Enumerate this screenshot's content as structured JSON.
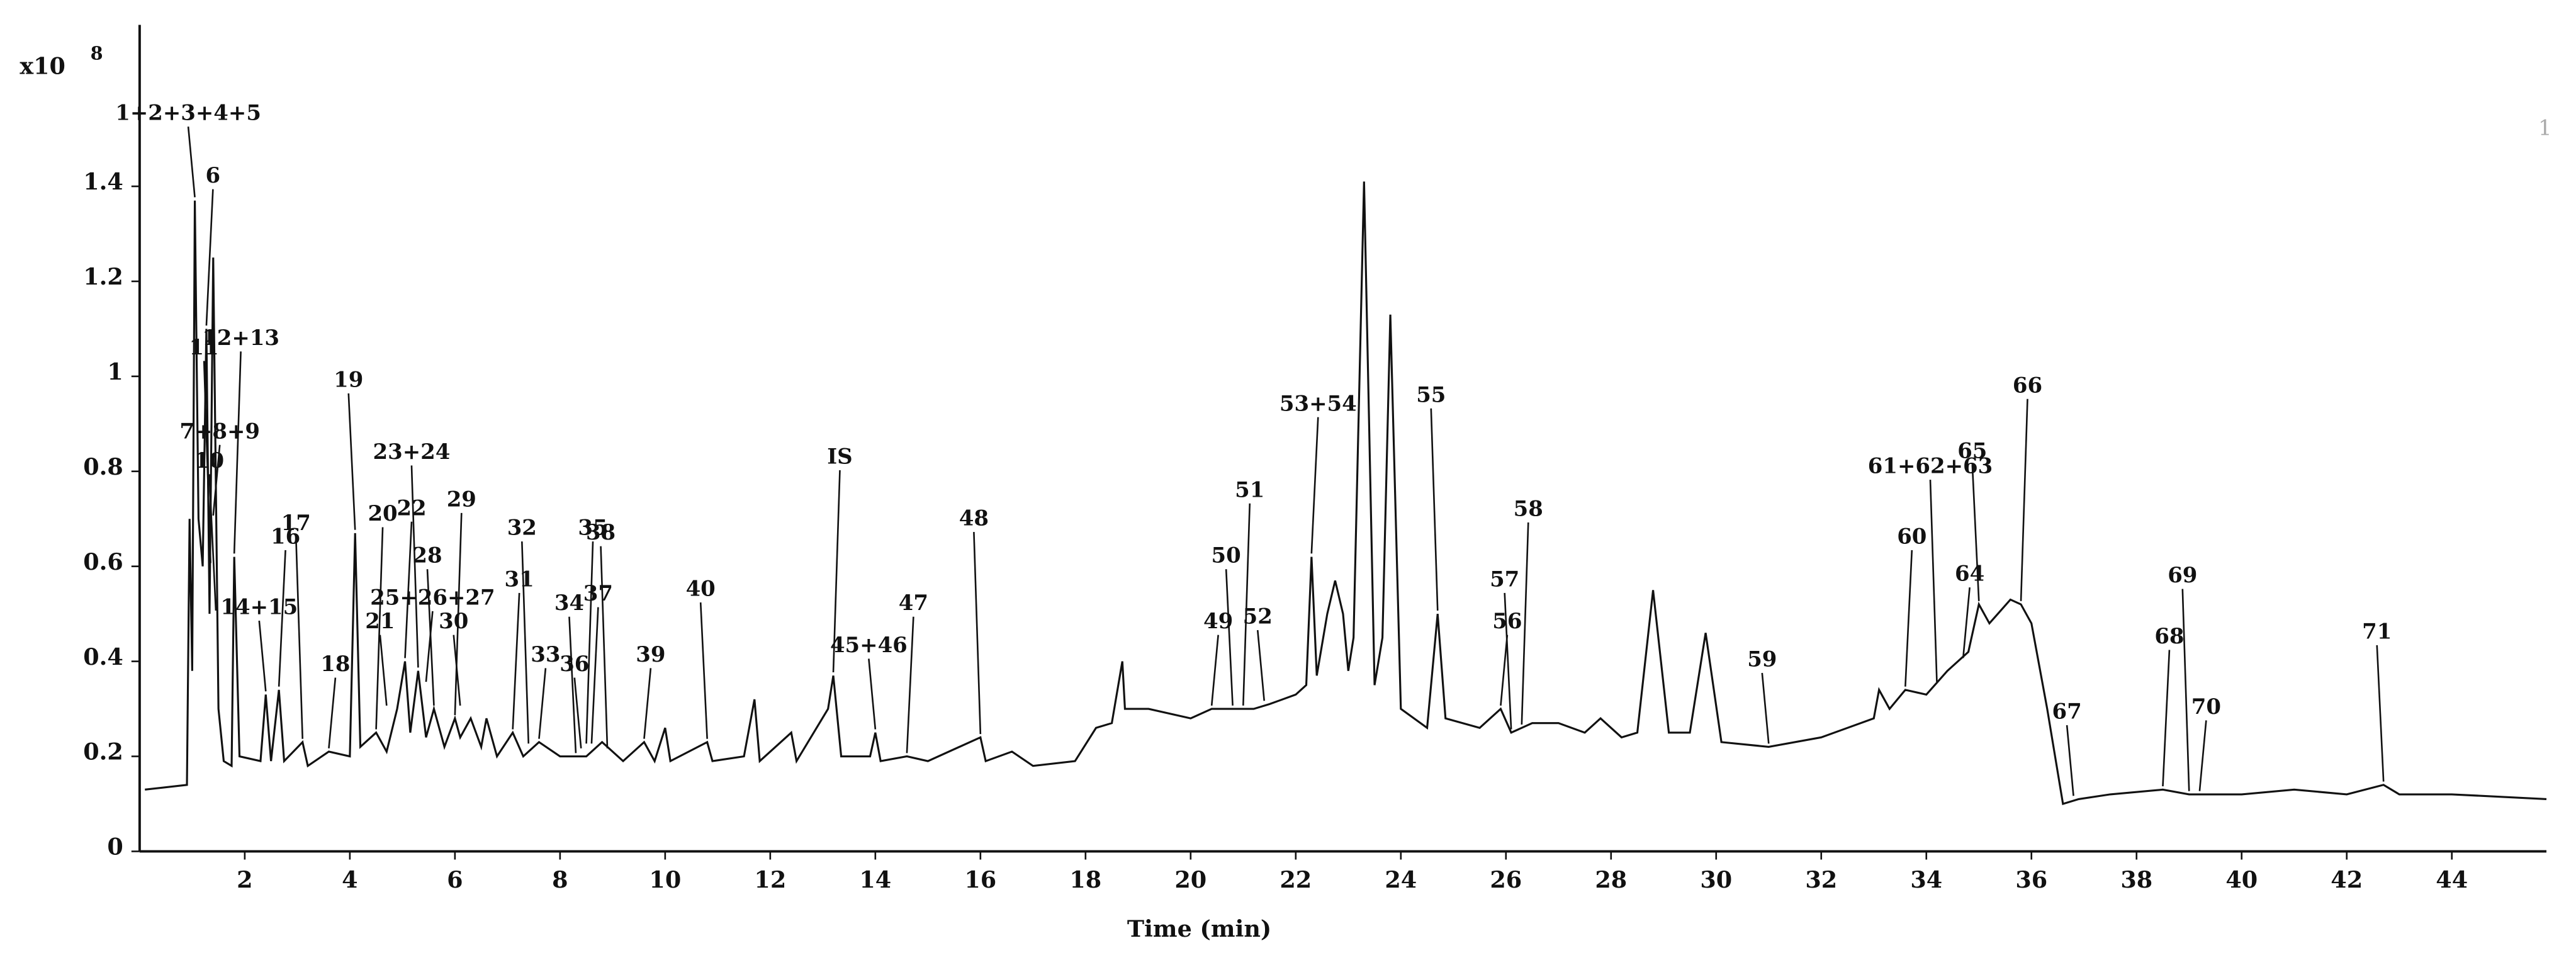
{
  "chart_data": {
    "type": "line",
    "x_label": "Time (min)",
    "y_multiplier": "x10",
    "y_exponent": "8",
    "corner_label": "1",
    "color": "#111111",
    "xlim": [
      0,
      45.8
    ],
    "ylim": [
      0,
      1.74
    ],
    "xticks": [
      2,
      4,
      6,
      8,
      10,
      12,
      14,
      16,
      18,
      20,
      22,
      24,
      26,
      28,
      30,
      32,
      34,
      36,
      38,
      40,
      42,
      44
    ],
    "yticks": [
      0,
      0.2,
      0.4,
      0.6,
      0.8,
      1,
      1.2,
      1.4
    ],
    "x": [
      0.1,
      0.9,
      0.95,
      1.0,
      1.05,
      1.12,
      1.2,
      1.27,
      1.33,
      1.4,
      1.5,
      1.6,
      1.75,
      1.8,
      1.9,
      2.3,
      2.4,
      2.5,
      2.65,
      2.75,
      3.1,
      3.2,
      3.6,
      4.0,
      4.1,
      4.2,
      4.5,
      4.7,
      4.9,
      5.05,
      5.15,
      5.3,
      5.45,
      5.6,
      5.8,
      6.0,
      6.1,
      6.3,
      6.5,
      6.6,
      6.8,
      7.1,
      7.3,
      7.6,
      8.0,
      8.5,
      8.8,
      9.2,
      9.6,
      9.8,
      10.0,
      10.1,
      10.8,
      10.9,
      11.5,
      11.7,
      11.8,
      12.4,
      12.5,
      13.1,
      13.2,
      13.35,
      13.9,
      14.0,
      14.1,
      14.6,
      15.0,
      16.0,
      16.1,
      16.6,
      17.0,
      17.8,
      18.2,
      18.5,
      18.7,
      18.75,
      19.2,
      20.0,
      20.4,
      20.8,
      21.2,
      21.5,
      22.0,
      22.2,
      22.3,
      22.4,
      22.6,
      22.75,
      22.9,
      23.0,
      23.1,
      23.3,
      23.5,
      23.65,
      23.8,
      24.0,
      24.5,
      24.7,
      24.85,
      25.5,
      25.9,
      26.1,
      26.5,
      27.0,
      27.5,
      27.8,
      28.2,
      28.5,
      28.8,
      29.1,
      29.5,
      29.8,
      30.1,
      31.0,
      32.0,
      33.0,
      33.1,
      33.3,
      33.6,
      34.0,
      34.4,
      34.8,
      35.0,
      35.2,
      35.6,
      35.8,
      36.0,
      36.3,
      36.6,
      36.9,
      37.5,
      38.5,
      39.0,
      40.0,
      41.0,
      42.0,
      42.7,
      43.0,
      44.0,
      45.8
    ],
    "values": [
      0.13,
      0.14,
      0.7,
      0.38,
      1.37,
      0.7,
      0.6,
      1.1,
      0.5,
      1.25,
      0.3,
      0.19,
      0.18,
      0.62,
      0.2,
      0.19,
      0.33,
      0.19,
      0.34,
      0.19,
      0.23,
      0.18,
      0.21,
      0.2,
      0.67,
      0.22,
      0.25,
      0.21,
      0.3,
      0.4,
      0.25,
      0.38,
      0.24,
      0.3,
      0.22,
      0.28,
      0.24,
      0.28,
      0.22,
      0.28,
      0.2,
      0.25,
      0.2,
      0.23,
      0.2,
      0.2,
      0.23,
      0.19,
      0.23,
      0.19,
      0.26,
      0.19,
      0.23,
      0.19,
      0.2,
      0.32,
      0.19,
      0.25,
      0.19,
      0.3,
      0.37,
      0.2,
      0.2,
      0.25,
      0.19,
      0.2,
      0.19,
      0.24,
      0.19,
      0.21,
      0.18,
      0.19,
      0.26,
      0.27,
      0.4,
      0.3,
      0.3,
      0.28,
      0.3,
      0.3,
      0.3,
      0.31,
      0.33,
      0.35,
      0.62,
      0.37,
      0.5,
      0.57,
      0.5,
      0.38,
      0.45,
      1.41,
      0.35,
      0.45,
      1.13,
      0.3,
      0.26,
      0.5,
      0.28,
      0.26,
      0.3,
      0.25,
      0.27,
      0.27,
      0.25,
      0.28,
      0.24,
      0.25,
      0.55,
      0.25,
      0.25,
      0.46,
      0.23,
      0.22,
      0.24,
      0.28,
      0.34,
      0.3,
      0.34,
      0.33,
      0.38,
      0.42,
      0.52,
      0.48,
      0.53,
      0.52,
      0.48,
      0.3,
      0.1,
      0.11,
      0.12,
      0.13,
      0.12,
      0.12,
      0.13,
      0.12,
      0.14,
      0.12,
      0.12,
      0.11
    ],
    "annotations": [
      {
        "text": "1+2+3+4+5",
        "x": 1.05,
        "y": 1.37
      },
      {
        "text": "6",
        "x": 1.27,
        "y": 1.1
      },
      {
        "text": "11",
        "x": 1.35,
        "y": 0.6
      },
      {
        "text": "7+8+9",
        "x": 1.4,
        "y": 0.7
      },
      {
        "text": "10",
        "x": 1.45,
        "y": 0.5
      },
      {
        "text": "12+13",
        "x": 1.8,
        "y": 0.62
      },
      {
        "text": "14+15",
        "x": 2.4,
        "y": 0.33
      },
      {
        "text": "16",
        "x": 2.65,
        "y": 0.34
      },
      {
        "text": "17",
        "x": 3.1,
        "y": 0.23
      },
      {
        "text": "18",
        "x": 3.6,
        "y": 0.21
      },
      {
        "text": "19",
        "x": 4.1,
        "y": 0.67
      },
      {
        "text": "20",
        "x": 4.5,
        "y": 0.25
      },
      {
        "text": "21",
        "x": 4.7,
        "y": 0.3
      },
      {
        "text": "22",
        "x": 5.05,
        "y": 0.4
      },
      {
        "text": "23+24",
        "x": 5.3,
        "y": 0.38
      },
      {
        "text": "25+26+27",
        "x": 5.45,
        "y": 0.35
      },
      {
        "text": "28",
        "x": 5.6,
        "y": 0.3
      },
      {
        "text": "29",
        "x": 6.0,
        "y": 0.28
      },
      {
        "text": "30",
        "x": 6.1,
        "y": 0.3
      },
      {
        "text": "31",
        "x": 7.1,
        "y": 0.25
      },
      {
        "text": "32",
        "x": 7.4,
        "y": 0.22
      },
      {
        "text": "33",
        "x": 7.6,
        "y": 0.23
      },
      {
        "text": "34",
        "x": 8.3,
        "y": 0.2
      },
      {
        "text": "35",
        "x": 8.5,
        "y": 0.22
      },
      {
        "text": "36",
        "x": 8.4,
        "y": 0.21
      },
      {
        "text": "37",
        "x": 8.6,
        "y": 0.22
      },
      {
        "text": "38",
        "x": 8.9,
        "y": 0.21
      },
      {
        "text": "39",
        "x": 9.6,
        "y": 0.23
      },
      {
        "text": "40",
        "x": 10.8,
        "y": 0.23
      },
      {
        "text": "IS",
        "x": 13.2,
        "y": 0.37
      },
      {
        "text": "45+46",
        "x": 14.0,
        "y": 0.25
      },
      {
        "text": "47",
        "x": 14.6,
        "y": 0.2
      },
      {
        "text": "48",
        "x": 16.0,
        "y": 0.24
      },
      {
        "text": "49",
        "x": 20.4,
        "y": 0.3
      },
      {
        "text": "50",
        "x": 20.8,
        "y": 0.3
      },
      {
        "text": "51",
        "x": 21.0,
        "y": 0.3
      },
      {
        "text": "52",
        "x": 21.4,
        "y": 0.31
      },
      {
        "text": "53+54",
        "x": 22.3,
        "y": 0.62
      },
      {
        "text": "55",
        "x": 24.7,
        "y": 0.5
      },
      {
        "text": "56",
        "x": 25.9,
        "y": 0.3
      },
      {
        "text": "57",
        "x": 26.1,
        "y": 0.25
      },
      {
        "text": "58",
        "x": 26.3,
        "y": 0.26
      },
      {
        "text": "59",
        "x": 31.0,
        "y": 0.22
      },
      {
        "text": "60",
        "x": 33.6,
        "y": 0.34
      },
      {
        "text": "61+62+63",
        "x": 34.2,
        "y": 0.35
      },
      {
        "text": "64",
        "x": 34.7,
        "y": 0.4
      },
      {
        "text": "65",
        "x": 35.0,
        "y": 0.52
      },
      {
        "text": "66",
        "x": 35.8,
        "y": 0.52
      },
      {
        "text": "67",
        "x": 36.8,
        "y": 0.11
      },
      {
        "text": "68",
        "x": 38.5,
        "y": 0.13
      },
      {
        "text": "69",
        "x": 39.0,
        "y": 0.12
      },
      {
        "text": "70",
        "x": 39.2,
        "y": 0.12
      },
      {
        "text": "71",
        "x": 42.7,
        "y": 0.14
      }
    ]
  }
}
